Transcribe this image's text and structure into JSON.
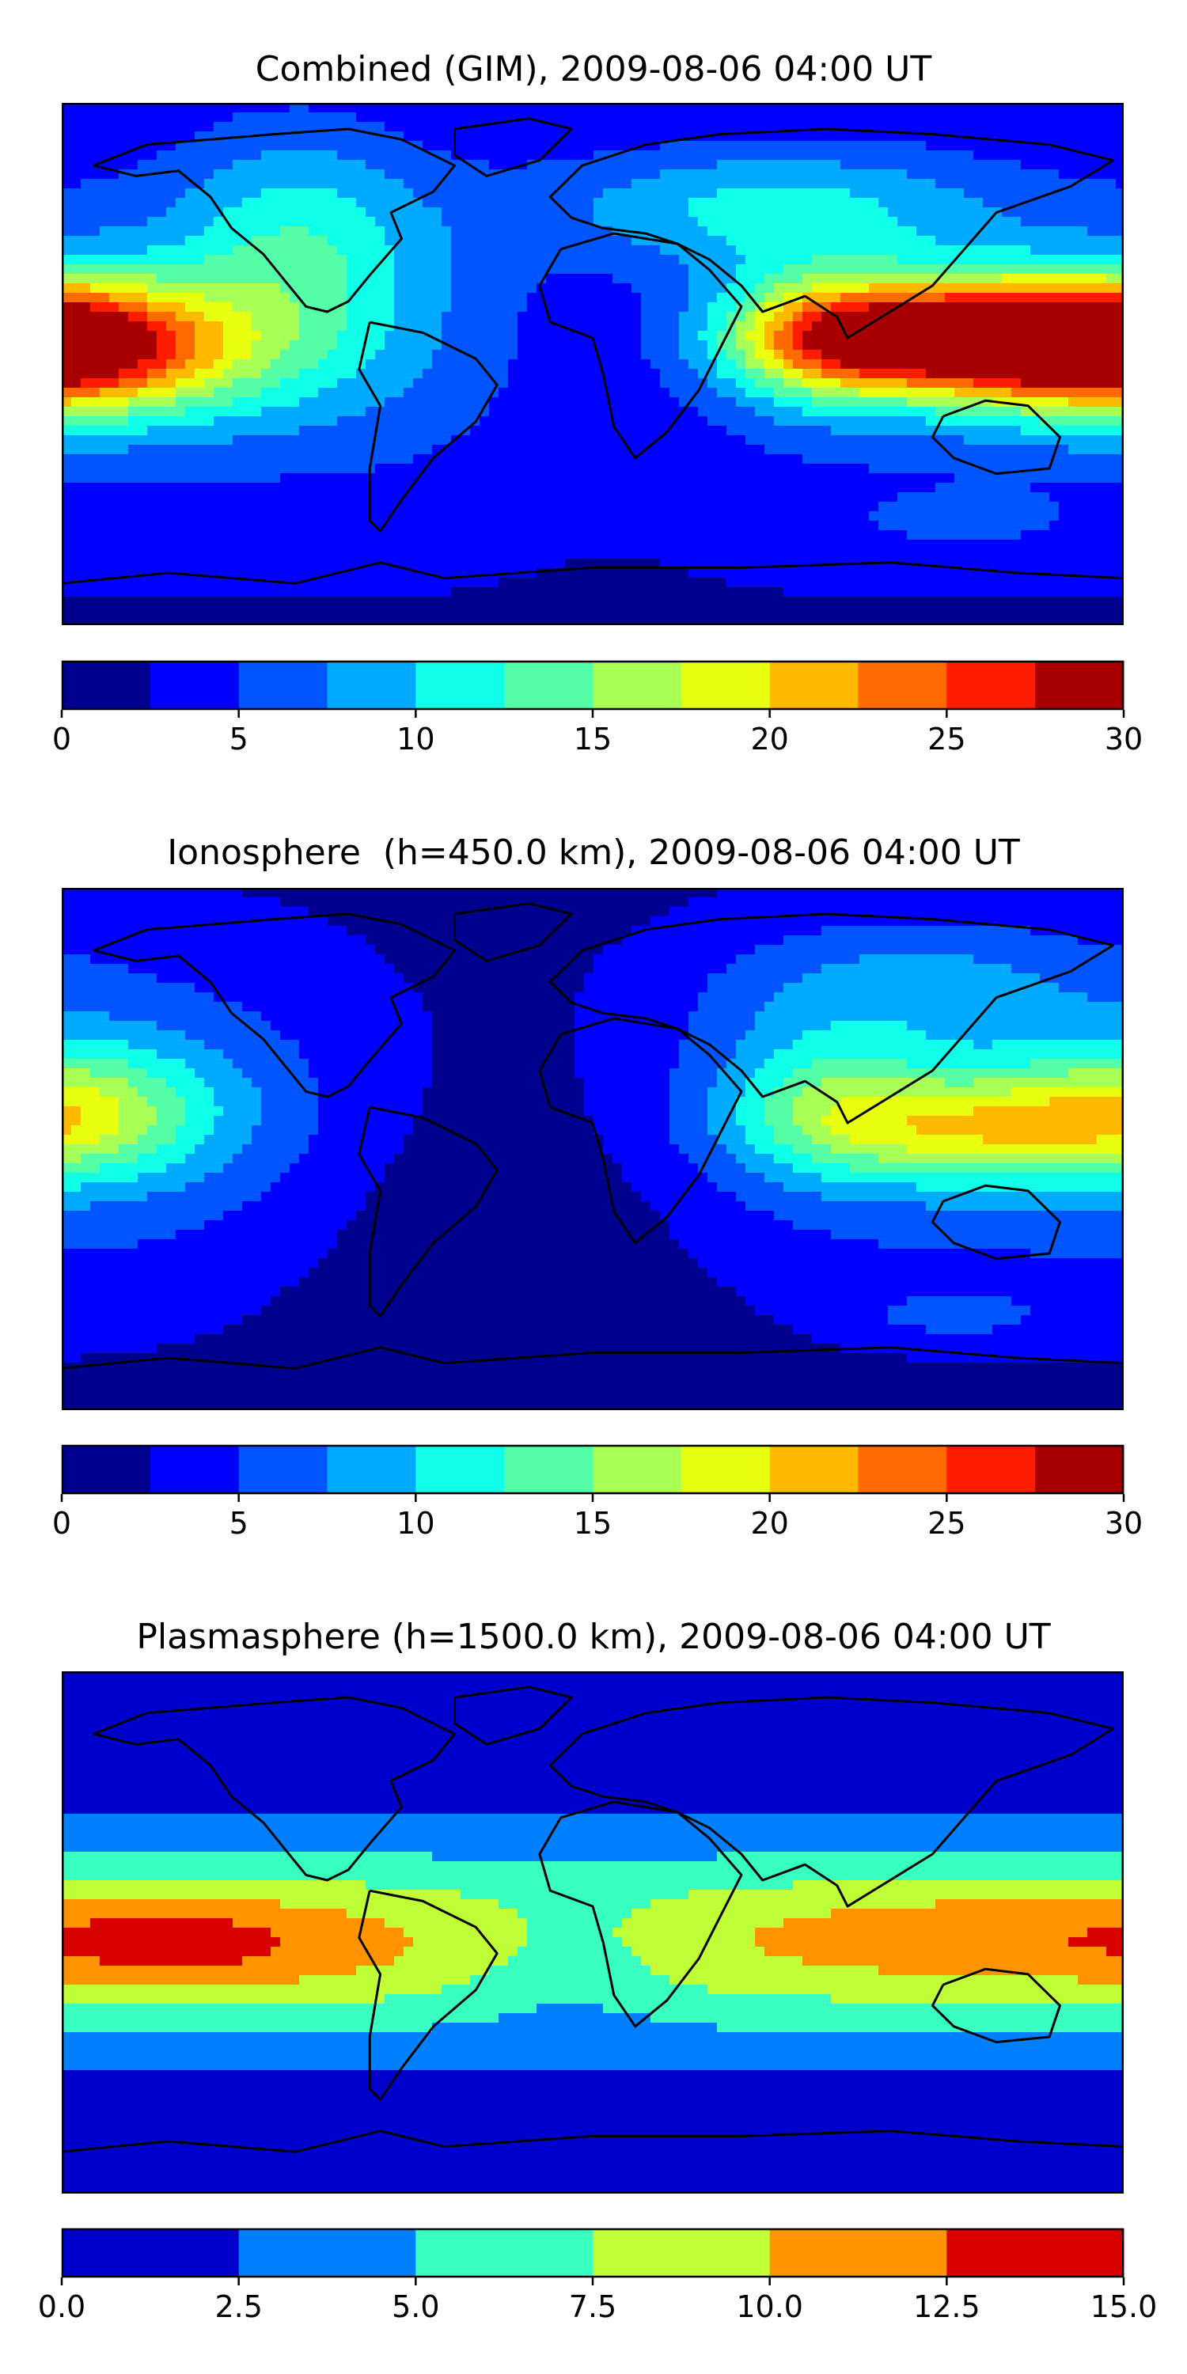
{
  "panels": [
    {
      "title": "Combined (GIM), 2009-08-06 04:00 UT",
      "field": "combined",
      "colorbar": {
        "vmin": 0,
        "vmax": 30,
        "step": 2.5,
        "ticks": [
          0,
          5,
          10,
          15,
          20,
          25,
          30
        ],
        "tick_labels": [
          "0",
          "5",
          "10",
          "15",
          "20",
          "25",
          "30"
        ],
        "colors": [
          "#00008f",
          "#0000ff",
          "#0055ff",
          "#00aaff",
          "#10ffe8",
          "#55ffa8",
          "#a8ff55",
          "#e8ff10",
          "#ffb900",
          "#ff6b00",
          "#ff1d00",
          "#a80000"
        ]
      }
    },
    {
      "title": "Ionosphere  (h=450.0 km), 2009-08-06 04:00 UT",
      "field": "ionosphere",
      "colorbar": {
        "vmin": 0,
        "vmax": 30,
        "step": 2.5,
        "ticks": [
          0,
          5,
          10,
          15,
          20,
          25,
          30
        ],
        "tick_labels": [
          "0",
          "5",
          "10",
          "15",
          "20",
          "25",
          "30"
        ],
        "colors": [
          "#00008f",
          "#0000ff",
          "#0055ff",
          "#00aaff",
          "#10ffe8",
          "#55ffa8",
          "#a8ff55",
          "#e8ff10",
          "#ffb900",
          "#ff6b00",
          "#ff1d00",
          "#a80000"
        ]
      }
    },
    {
      "title": "Plasmasphere (h=1500.0 km), 2009-08-06 04:00 UT",
      "field": "plasmasphere",
      "colorbar": {
        "vmin": 0,
        "vmax": 15,
        "step": 2.5,
        "ticks": [
          0,
          2.5,
          5,
          7.5,
          10,
          12.5,
          15
        ],
        "tick_labels": [
          "0.0",
          "2.5",
          "5.0",
          "7.5",
          "10.0",
          "12.5",
          "15.0"
        ],
        "colors": [
          "#0000cd",
          "#007fff",
          "#38ffc0",
          "#c0ff38",
          "#ff9400",
          "#d90000"
        ]
      }
    }
  ]
}
